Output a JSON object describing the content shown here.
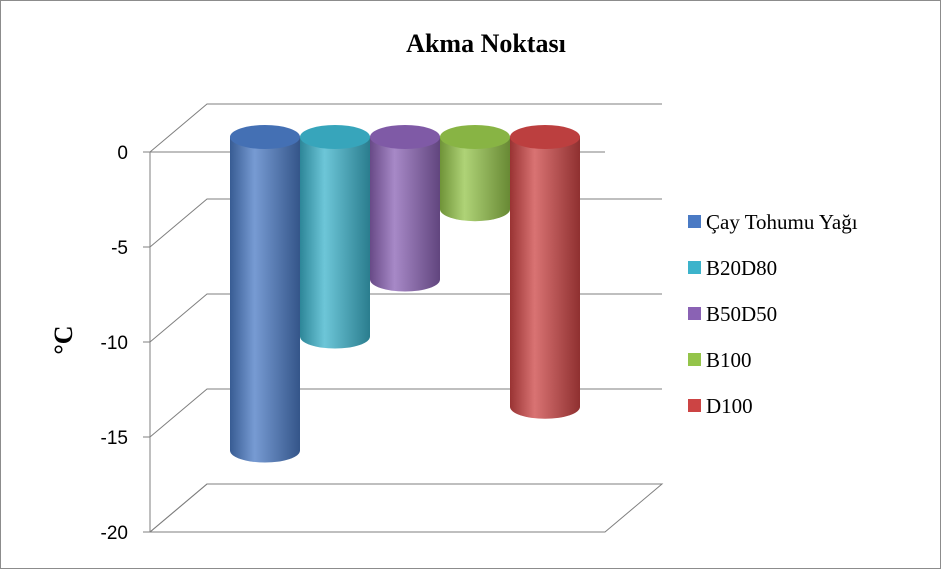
{
  "chart_data": {
    "type": "bar",
    "style": "3d-cylinder",
    "title": "Akma Noktası",
    "xlabel": "",
    "ylabel": "°C",
    "ylim": [
      -20,
      0
    ],
    "yticks": [
      0,
      -5,
      -10,
      -15,
      -20
    ],
    "grid": true,
    "legend_position": "right",
    "series": [
      {
        "name": "Çay Tohumu Yağı",
        "value": -16.5,
        "color": "#4a7ac4"
      },
      {
        "name": "B20D80",
        "value": -10.5,
        "color": "#3cb3cb"
      },
      {
        "name": "B50D50",
        "value": -7.5,
        "color": "#8a62b4"
      },
      {
        "name": "B100",
        "value": -3.8,
        "color": "#94c44a"
      },
      {
        "name": "D100",
        "value": -14.2,
        "color": "#cc4444"
      }
    ]
  }
}
